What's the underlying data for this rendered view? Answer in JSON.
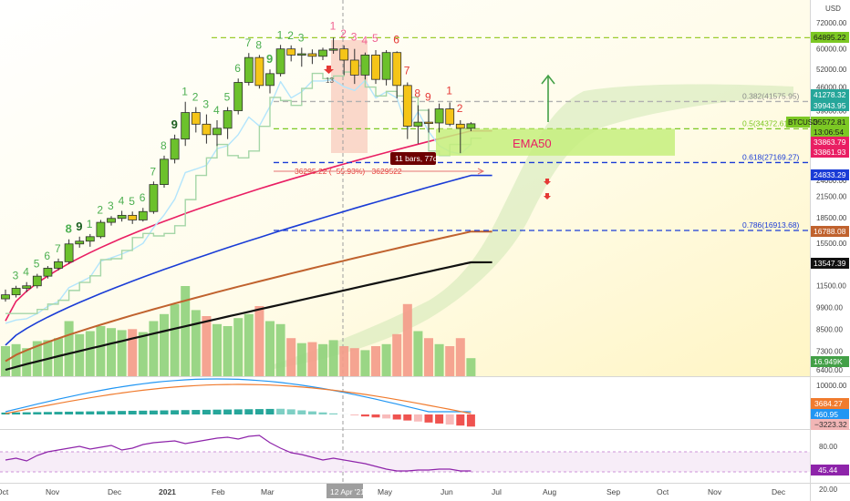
{
  "chart_data": [
    {
      "type": "candlestick",
      "title": "",
      "currency": "USD",
      "x_tick_labels": [
        "Oct",
        "Nov",
        "Dec",
        "2021",
        "Feb",
        "Mar",
        "12 Apr '21",
        "May",
        "Jun",
        "Jul",
        "Aug",
        "Sep",
        "Oct",
        "Nov",
        "Dec"
      ],
      "y_tick_labels": [
        "72000.00",
        "60000.00",
        "52000.00",
        "46000.00",
        "39000.00",
        "30000.00",
        "24000.00",
        "21500.00",
        "18500.00",
        "15500.00",
        "13500.00",
        "11500.00",
        "9900.00",
        "8500.00",
        "7300.00",
        "6400.00"
      ],
      "y_scale": "log",
      "price_labels": [
        {
          "text": "64895.22",
          "color": "#7cc824"
        },
        {
          "text": "41278.32",
          "color": "#26a69a"
        },
        {
          "text": "39943.95",
          "color": "#26a69a"
        },
        {
          "text": "35572.81",
          "color": "#7cc824"
        },
        {
          "text": "13:06:54",
          "color": "#7cc824"
        },
        {
          "text": "33863.79",
          "color": "#e91e63"
        },
        {
          "text": "33861.93",
          "color": "#e91e63"
        },
        {
          "text": "24833.29",
          "color": "#1a3cd6"
        },
        {
          "text": "16788.08",
          "color": "#c0622e"
        },
        {
          "text": "13547.39",
          "color": "#111111"
        },
        {
          "text": "16.949K",
          "color": "#43a047"
        }
      ],
      "symbol_label": "BTCUSD",
      "fib_levels": [
        {
          "label": "0.382(41575.95)",
          "value": 41575.95,
          "color": "#b0b0b0"
        },
        {
          "label": "0.5(34372.61)",
          "value": 34372.61,
          "color": "#7cc824"
        },
        {
          "label": "0.618(27169.27)",
          "value": 27169.27,
          "color": "#1a3cd6"
        },
        {
          "label": "0.786(16913.68)",
          "value": 16913.68,
          "color": "#1a3cd6"
        }
      ],
      "top_level_value": 64895.22,
      "ema_label": "EMA50",
      "bars_label": "11 bars, 77d",
      "measure_label": "−36295.22 (−55.93%) −3629522",
      "ath_label": "13",
      "td_counts_green": [
        "3",
        "4",
        "5",
        "6",
        "7",
        "8",
        "9",
        "1",
        "2",
        "3",
        "4",
        "5",
        "6",
        "7",
        "8",
        "9",
        "1",
        "2",
        "3",
        "4",
        "5",
        "6",
        "7",
        "8",
        "9",
        "1",
        "2",
        "3"
      ],
      "td_counts_red": [
        "1",
        "2",
        "3",
        "4",
        "5",
        "6",
        "7",
        "8",
        "9",
        "1",
        "2"
      ],
      "candles": [
        {
          "o": 10500,
          "h": 11200,
          "l": 10300,
          "c": 10800
        },
        {
          "o": 10800,
          "h": 11500,
          "l": 10600,
          "c": 11300
        },
        {
          "o": 11300,
          "h": 11800,
          "l": 11000,
          "c": 11500
        },
        {
          "o": 11500,
          "h": 12500,
          "l": 11300,
          "c": 12300
        },
        {
          "o": 12300,
          "h": 13200,
          "l": 12100,
          "c": 13000
        },
        {
          "o": 13000,
          "h": 13900,
          "l": 12800,
          "c": 13600
        },
        {
          "o": 13600,
          "h": 15900,
          "l": 13400,
          "c": 15400
        },
        {
          "o": 15400,
          "h": 16200,
          "l": 15000,
          "c": 15700
        },
        {
          "o": 15700,
          "h": 16500,
          "l": 15100,
          "c": 16200
        },
        {
          "o": 16200,
          "h": 18200,
          "l": 16000,
          "c": 17900
        },
        {
          "o": 17900,
          "h": 18700,
          "l": 17500,
          "c": 18400
        },
        {
          "o": 18400,
          "h": 19400,
          "l": 18000,
          "c": 18800
        },
        {
          "o": 18800,
          "h": 19300,
          "l": 17700,
          "c": 18200
        },
        {
          "o": 18200,
          "h": 19800,
          "l": 18000,
          "c": 19300
        },
        {
          "o": 19300,
          "h": 23800,
          "l": 19000,
          "c": 23300
        },
        {
          "o": 23300,
          "h": 28500,
          "l": 22800,
          "c": 27800
        },
        {
          "o": 27800,
          "h": 33000,
          "l": 27000,
          "c": 32000
        },
        {
          "o": 32000,
          "h": 41500,
          "l": 30500,
          "c": 38500
        },
        {
          "o": 38500,
          "h": 40000,
          "l": 33500,
          "c": 35500
        },
        {
          "o": 35500,
          "h": 38000,
          "l": 31000,
          "c": 33000
        },
        {
          "o": 33000,
          "h": 36500,
          "l": 30500,
          "c": 34500
        },
        {
          "o": 34500,
          "h": 40000,
          "l": 32000,
          "c": 39000
        },
        {
          "o": 39000,
          "h": 48800,
          "l": 38000,
          "c": 47500
        },
        {
          "o": 47500,
          "h": 58300,
          "l": 46500,
          "c": 56500
        },
        {
          "o": 56500,
          "h": 57500,
          "l": 45500,
          "c": 46500
        },
        {
          "o": 46500,
          "h": 52000,
          "l": 44000,
          "c": 50500
        },
        {
          "o": 50500,
          "h": 61700,
          "l": 49500,
          "c": 60000
        },
        {
          "o": 60000,
          "h": 61500,
          "l": 55000,
          "c": 57500
        },
        {
          "o": 57500,
          "h": 60500,
          "l": 53000,
          "c": 58000
        },
        {
          "o": 58000,
          "h": 59800,
          "l": 54000,
          "c": 57000
        },
        {
          "o": 57000,
          "h": 60500,
          "l": 55500,
          "c": 59500
        },
        {
          "o": 59500,
          "h": 64895,
          "l": 58000,
          "c": 60000
        },
        {
          "o": 60000,
          "h": 61500,
          "l": 50000,
          "c": 55500
        },
        {
          "o": 55500,
          "h": 60000,
          "l": 47000,
          "c": 50000
        },
        {
          "o": 50000,
          "h": 58500,
          "l": 48500,
          "c": 57500
        },
        {
          "o": 57500,
          "h": 59500,
          "l": 47000,
          "c": 48500
        },
        {
          "o": 48500,
          "h": 59500,
          "l": 46500,
          "c": 58500
        },
        {
          "o": 58500,
          "h": 59000,
          "l": 42500,
          "c": 46500
        },
        {
          "o": 46500,
          "h": 47500,
          "l": 32000,
          "c": 35000
        },
        {
          "o": 35000,
          "h": 40500,
          "l": 31000,
          "c": 36000
        },
        {
          "o": 36000,
          "h": 39500,
          "l": 33500,
          "c": 35800
        },
        {
          "o": 35800,
          "h": 41000,
          "l": 33500,
          "c": 39500
        },
        {
          "o": 39500,
          "h": 41300,
          "l": 35000,
          "c": 35500
        },
        {
          "o": 35500,
          "h": 36500,
          "l": 29000,
          "c": 34500
        },
        {
          "o": 34500,
          "h": 36000,
          "l": 33800,
          "c": 35600
        }
      ],
      "volume": [
        {
          "v": 0.3,
          "up": true
        },
        {
          "v": 0.32,
          "up": true
        },
        {
          "v": 0.28,
          "up": true
        },
        {
          "v": 0.35,
          "up": true
        },
        {
          "v": 0.36,
          "up": true
        },
        {
          "v": 0.38,
          "up": true
        },
        {
          "v": 0.55,
          "up": true
        },
        {
          "v": 0.42,
          "up": true
        },
        {
          "v": 0.45,
          "up": true
        },
        {
          "v": 0.5,
          "up": true
        },
        {
          "v": 0.48,
          "up": true
        },
        {
          "v": 0.46,
          "up": true
        },
        {
          "v": 0.47,
          "up": false
        },
        {
          "v": 0.44,
          "up": true
        },
        {
          "v": 0.55,
          "up": true
        },
        {
          "v": 0.62,
          "up": true
        },
        {
          "v": 0.72,
          "up": true
        },
        {
          "v": 0.9,
          "up": true
        },
        {
          "v": 0.66,
          "up": true
        },
        {
          "v": 0.6,
          "up": false
        },
        {
          "v": 0.52,
          "up": true
        },
        {
          "v": 0.5,
          "up": true
        },
        {
          "v": 0.58,
          "up": true
        },
        {
          "v": 0.62,
          "up": true
        },
        {
          "v": 0.7,
          "up": false
        },
        {
          "v": 0.55,
          "up": true
        },
        {
          "v": 0.52,
          "up": true
        },
        {
          "v": 0.38,
          "up": false
        },
        {
          "v": 0.33,
          "up": true
        },
        {
          "v": 0.34,
          "up": false
        },
        {
          "v": 0.32,
          "up": true
        },
        {
          "v": 0.36,
          "up": true
        },
        {
          "v": 0.3,
          "up": false
        },
        {
          "v": 0.28,
          "up": false
        },
        {
          "v": 0.26,
          "up": true
        },
        {
          "v": 0.3,
          "up": false
        },
        {
          "v": 0.32,
          "up": true
        },
        {
          "v": 0.42,
          "up": false
        },
        {
          "v": 0.72,
          "up": false
        },
        {
          "v": 0.45,
          "up": true
        },
        {
          "v": 0.38,
          "up": false
        },
        {
          "v": 0.32,
          "up": true
        },
        {
          "v": 0.3,
          "up": false
        },
        {
          "v": 0.38,
          "up": false
        },
        {
          "v": 0.18,
          "up": true
        }
      ]
    },
    {
      "type": "histogram",
      "name": "MACD",
      "y_tick_labels": [
        "10000.00"
      ],
      "value_labels": [
        {
          "text": "3684.27",
          "color": "#f07b2e"
        },
        {
          "text": "460.95",
          "color": "#2196f3"
        },
        {
          "text": "−3223.32",
          "color": "#f2b6b6"
        }
      ]
    },
    {
      "type": "line",
      "name": "RSI",
      "y_tick_labels": [
        "80.00",
        "20.00"
      ],
      "value_labels": [
        {
          "text": "45.44",
          "color": "#8e24aa"
        }
      ]
    }
  ]
}
